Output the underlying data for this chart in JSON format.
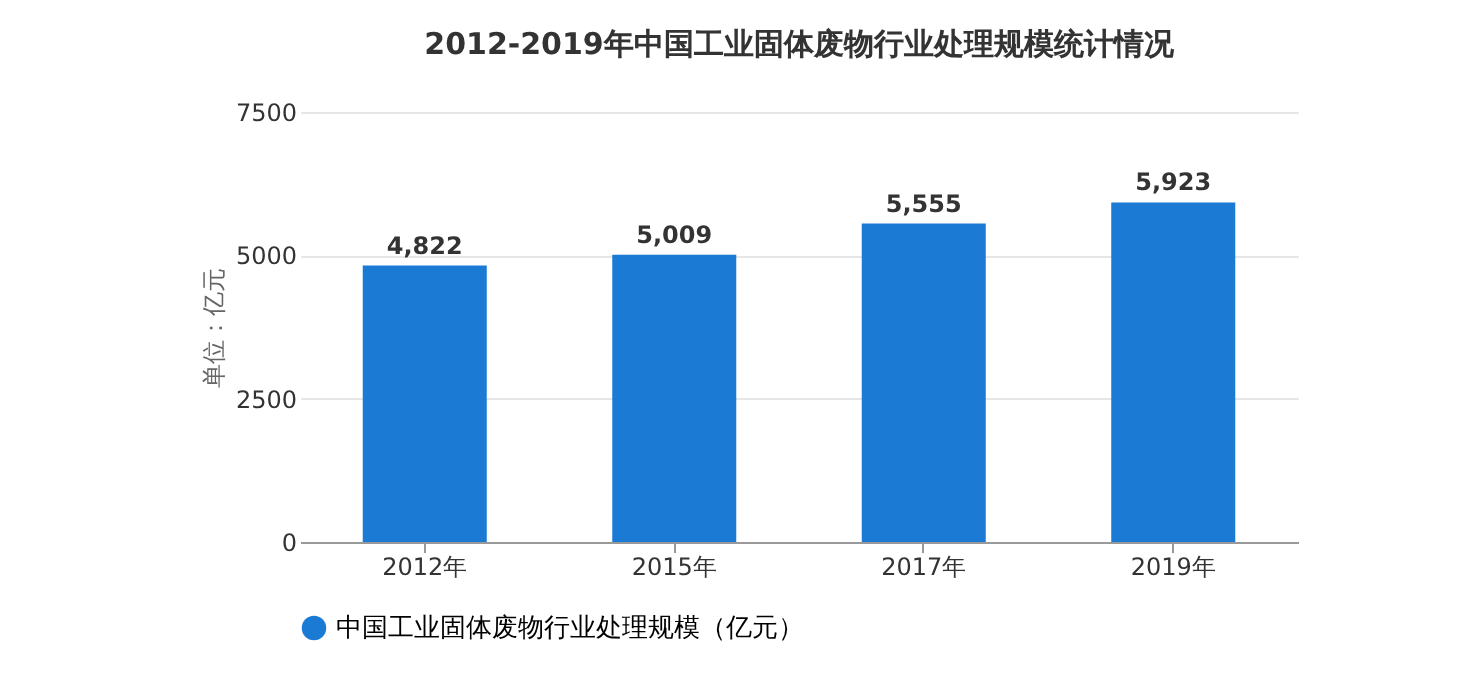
{
  "chart_data": {
    "type": "bar",
    "title": "2012-2019年中国工业固体废物行业处理规模统计情况",
    "ylabel": "单位：亿元",
    "categories": [
      "2012年",
      "2015年",
      "2017年",
      "2019年"
    ],
    "series": [
      {
        "name": "中国工业固体废物行业处理规模（亿元）",
        "color": "#1a7ad4",
        "values": [
          4822,
          5009,
          5555,
          5923
        ]
      }
    ],
    "value_labels": [
      "4,822",
      "5,009",
      "5,555",
      "5,923"
    ],
    "ylim": [
      0,
      7500
    ],
    "yticks": [
      0,
      2500,
      5000,
      7500
    ],
    "grid": "y",
    "legend": "bottom"
  }
}
